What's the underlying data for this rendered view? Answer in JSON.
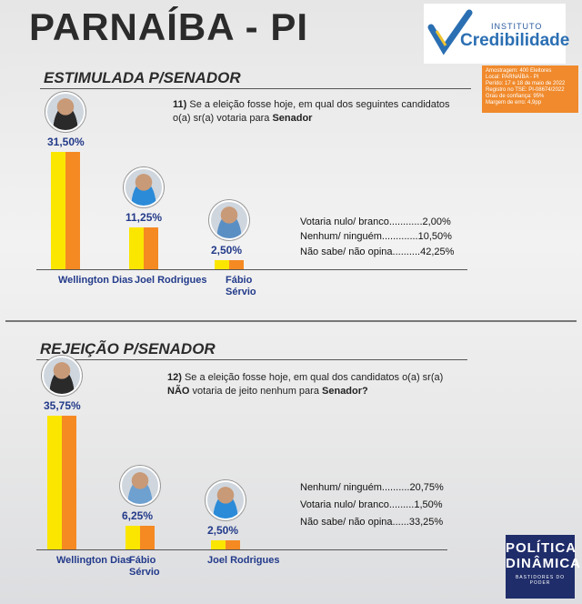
{
  "title": "PARNAÍBA - PI",
  "logo": {
    "top": "INSTITUTO",
    "main": "Credibilidade"
  },
  "info": [
    "Amostragem: 400 Eleitores",
    "Local: PARNAÍBA - PI",
    "Perído: 17 e 18 de maio de 2022",
    "Registro no TSE: PI-08674/2022",
    "Grau de confiança: 95%",
    "Margem de erro: 4,9pp"
  ],
  "brand": {
    "line1": "POLÍTICA",
    "line2": "DINÂMICA",
    "line3": "BASTIDORES DO PODER"
  },
  "colors": {
    "bar_yellow": "#fbe600",
    "bar_orange": "#f58a23",
    "label_blue": "#223a8a",
    "info_orange": "#f08a2c"
  },
  "chart_data": [
    {
      "type": "bar",
      "title": "ESTIMULADA P/SENADOR",
      "question_number": "11)",
      "question_text": "Se a eleição fosse hoje, em qual dos seguintes candidatos o(a) sr(a) votaria para",
      "question_bold": "Senador",
      "categories": [
        "Wellington Dias",
        "Joel Rodrigues",
        "Fábio Sérvio"
      ],
      "values": [
        31.5,
        11.25,
        2.5
      ],
      "value_labels": [
        "31,50%",
        "11,25%",
        "2,50%"
      ],
      "others": [
        {
          "label": "Votaria nulo/ branco............",
          "value": "2,00%"
        },
        {
          "label": "Nenhum/ ninguém.............",
          "value": "10,50%"
        },
        {
          "label": "Não sabe/ não opina..........",
          "value": "42,25%"
        }
      ]
    },
    {
      "type": "bar",
      "title": "REJEIÇÃO P/SENADOR",
      "question_number": "12)",
      "question_text": "Se a eleição fosse hoje, em qual dos candidatos o(a) sr(a)",
      "question_bold_a": "NÃO",
      "question_text_b": "votaria de jeito nenhum para",
      "question_bold": "Senador?",
      "categories": [
        "Wellington Dias",
        "Fábio Sérvio",
        "Joel Rodrigues"
      ],
      "values": [
        35.75,
        6.25,
        2.5
      ],
      "value_labels": [
        "35,75%",
        "6,25%",
        "2,50%"
      ],
      "others": [
        {
          "label": "Nenhum/ ninguém..........",
          "value": "20,75%"
        },
        {
          "label": "Votaria nulo/ branco.........",
          "value": "1,50%"
        },
        {
          "label": "Não sabe/ não opina......",
          "value": "33,25%"
        }
      ]
    }
  ]
}
